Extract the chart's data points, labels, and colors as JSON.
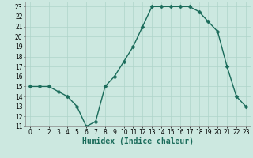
{
  "x": [
    0,
    1,
    2,
    3,
    4,
    5,
    6,
    7,
    8,
    9,
    10,
    11,
    12,
    13,
    14,
    15,
    16,
    17,
    18,
    19,
    20,
    21,
    22,
    23
  ],
  "y": [
    15,
    15,
    15,
    14.5,
    14,
    13,
    11,
    11.5,
    15,
    16,
    17.5,
    19,
    21,
    23,
    23,
    23,
    23,
    23,
    22.5,
    21.5,
    20.5,
    17,
    14,
    13
  ],
  "xlabel": "Humidex (Indice chaleur)",
  "xlim": [
    -0.5,
    23.5
  ],
  "ylim": [
    11,
    23.5
  ],
  "yticks": [
    11,
    12,
    13,
    14,
    15,
    16,
    17,
    18,
    19,
    20,
    21,
    22,
    23
  ],
  "xticks": [
    0,
    1,
    2,
    3,
    4,
    5,
    6,
    7,
    8,
    9,
    10,
    11,
    12,
    13,
    14,
    15,
    16,
    17,
    18,
    19,
    20,
    21,
    22,
    23
  ],
  "line_color": "#1a6b5a",
  "marker_color": "#1a6b5a",
  "bg_color": "#cce8e0",
  "grid_color": "#afd4ca",
  "xlabel_color": "#1a6b5a",
  "xlabel_fontsize": 7,
  "tick_fontsize": 5.5,
  "line_width": 1.0,
  "marker_size": 2.5
}
